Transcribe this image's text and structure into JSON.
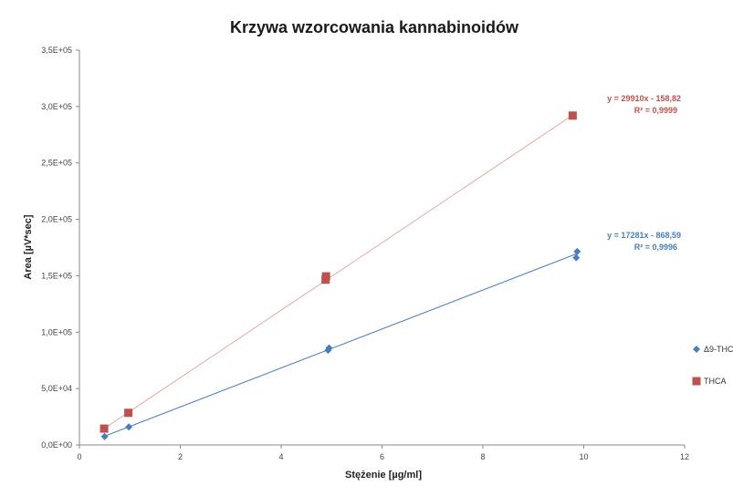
{
  "chart_data": {
    "type": "scatter",
    "title": "Krzywa wzorcowania kannabinoidów",
    "xlabel": "Stężenie [µg/ml]",
    "ylabel": "Area [µV*sec]",
    "xlim": [
      0,
      12
    ],
    "ylim": [
      0,
      350000
    ],
    "x_ticks": [
      {
        "value": 0,
        "label": "0"
      },
      {
        "value": 2,
        "label": "2"
      },
      {
        "value": 4,
        "label": "4"
      },
      {
        "value": 6,
        "label": "6"
      },
      {
        "value": 8,
        "label": "8"
      },
      {
        "value": 10,
        "label": "10"
      },
      {
        "value": 12,
        "label": "12"
      }
    ],
    "y_ticks": [
      {
        "value": 0,
        "label": "0,0E+00"
      },
      {
        "value": 50000,
        "label": "5,0E+04"
      },
      {
        "value": 100000,
        "label": "1,0E+05"
      },
      {
        "value": 150000,
        "label": "1,5E+05"
      },
      {
        "value": 200000,
        "label": "2,0E+05"
      },
      {
        "value": 250000,
        "label": "2,5E+05"
      },
      {
        "value": 300000,
        "label": "3,0E+05"
      },
      {
        "value": 350000,
        "label": "3,5E+05"
      }
    ],
    "grid": false,
    "legend_position": "right",
    "series": [
      {
        "name": "Δ9-THC",
        "marker": "diamond",
        "color": "#4a7ebb",
        "points": [
          {
            "x": 0.5,
            "y": 7500
          },
          {
            "x": 0.98,
            "y": 16000
          },
          {
            "x": 4.93,
            "y": 84000
          },
          {
            "x": 4.95,
            "y": 86000
          },
          {
            "x": 9.85,
            "y": 166000
          },
          {
            "x": 9.87,
            "y": 171500
          }
        ],
        "trendline": {
          "slope": 17281,
          "intercept": -868.59,
          "x_range": [
            0.5,
            9.85
          ],
          "color": "#4a7ebb",
          "equation": "y = 17281x - 868,59",
          "r2": "R² = 0,9996"
        }
      },
      {
        "name": "THCA",
        "marker": "square",
        "color": "#c0504d",
        "points": [
          {
            "x": 0.49,
            "y": 14500
          },
          {
            "x": 0.97,
            "y": 28500
          },
          {
            "x": 4.88,
            "y": 146500
          },
          {
            "x": 4.89,
            "y": 149500
          },
          {
            "x": 9.78,
            "y": 292000
          }
        ],
        "trendline": {
          "slope": 29910,
          "intercept": -158.82,
          "x_range": [
            0.49,
            9.78
          ],
          "color": "#e8a8a6",
          "equation": "y = 29910x - 158,82",
          "r2": "R² = 0,9999"
        }
      }
    ]
  }
}
